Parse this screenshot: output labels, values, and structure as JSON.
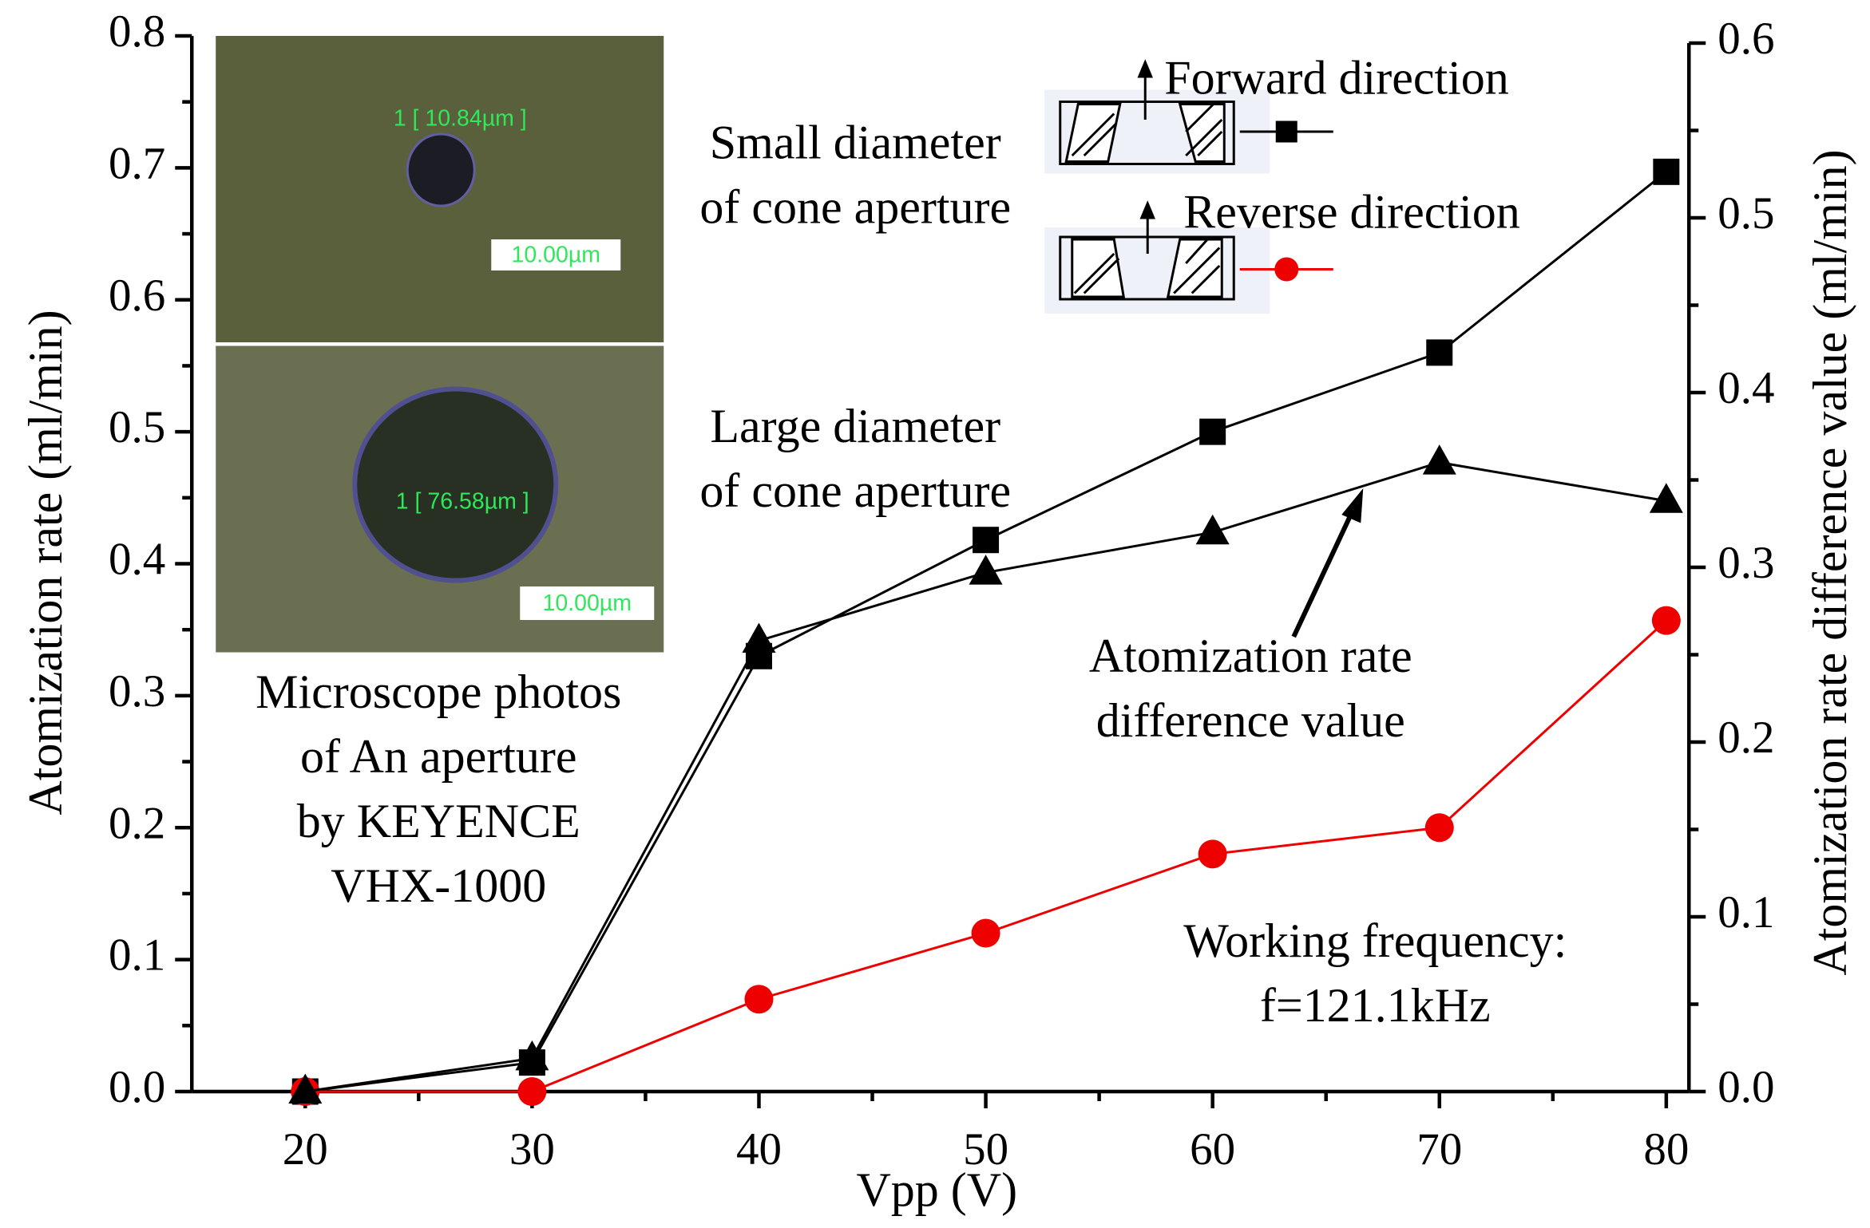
{
  "chart_data": {
    "type": "line",
    "x_label": "Vpp (V)",
    "y_label": "Atomization rate (ml/min)",
    "y2_label": "Atomization rate difference value (ml/min)",
    "x": [
      20,
      30,
      40,
      50,
      60,
      70,
      80
    ],
    "xlim": [
      15,
      81
    ],
    "xticks": [
      20,
      30,
      40,
      50,
      60,
      70,
      80
    ],
    "ylim": [
      0,
      0.8
    ],
    "yticks": [
      {
        "value": 0,
        "label": "0.0"
      },
      0.1,
      0.2,
      0.3,
      0.4,
      0.5,
      0.6,
      0.7,
      0.8
    ],
    "y2lim": [
      0,
      0.6
    ],
    "y2ticks": [
      {
        "value": 0,
        "label": "0.0"
      },
      0.1,
      0.2,
      0.3,
      0.4,
      0.5,
      0.6
    ],
    "series": [
      {
        "name": "Forward direction",
        "color": "#000000",
        "marker": "square",
        "values": [
          0,
          0.022,
          0.33,
          0.418,
          0.5,
          0.56,
          0.697
        ]
      },
      {
        "name": "Reverse direction",
        "color": "#ee0000",
        "marker": "circle",
        "values": [
          0,
          0,
          0.07,
          0.12,
          0.18,
          0.2,
          0.357
        ]
      },
      {
        "name": "Atomization rate difference value",
        "color": "#000000",
        "marker": "triangle",
        "axis": "y2",
        "values": [
          0,
          0.019,
          0.258,
          0.297,
          0.32,
          0.36,
          0.338
        ]
      }
    ],
    "annotations": [
      [
        "Small diameter",
        "of cone aperture"
      ],
      [
        "Large diameter",
        "of cone aperture"
      ],
      [
        "Microscope photos",
        "of An aperture",
        "by KEYENCE",
        "VHX-1000"
      ],
      [
        "Atomization rate",
        "difference value"
      ],
      [
        "Working frequency:",
        "f=121.1kHz"
      ]
    ],
    "photo_labels": [
      "1 [ 10.84µm ]",
      "10.00µm",
      "1 [ 76.58µm ]",
      "10.00µm"
    ]
  }
}
